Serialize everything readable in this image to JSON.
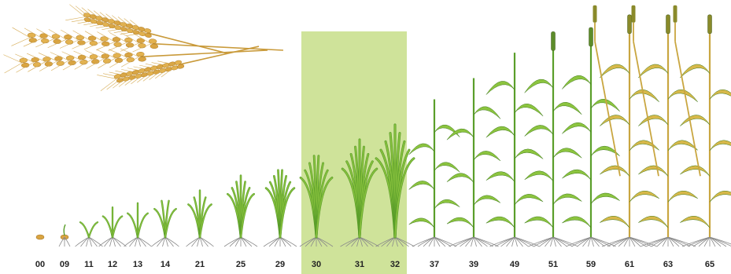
{
  "figure": {
    "highlight_stages": [
      "30",
      "31",
      "32"
    ],
    "colors": {
      "highlight": "#cfe39a",
      "leaf_green": "#5a9e2a",
      "leaf_green_light": "#8cc43f",
      "ripe_yellow": "#d7b84a",
      "grain_gold": "#d9a441",
      "root": "#8a8a8a"
    }
  },
  "stages": [
    {
      "code": "00",
      "kind": "seed"
    },
    {
      "code": "09",
      "kind": "sprout"
    },
    {
      "code": "11",
      "kind": "seedling",
      "leaves": 2,
      "size": 0.1
    },
    {
      "code": "12",
      "kind": "seedling",
      "leaves": 3,
      "size": 0.14
    },
    {
      "code": "13",
      "kind": "seedling",
      "leaves": 3,
      "size": 0.16
    },
    {
      "code": "14",
      "kind": "seedling",
      "leaves": 4,
      "size": 0.19
    },
    {
      "code": "21",
      "kind": "tiller",
      "leaves": 5,
      "size": 0.22
    },
    {
      "code": "25",
      "kind": "tiller",
      "leaves": 7,
      "size": 0.29
    },
    {
      "code": "29",
      "kind": "tiller",
      "leaves": 8,
      "size": 0.33
    },
    {
      "code": "30",
      "kind": "tiller",
      "leaves": 8,
      "size": 0.4
    },
    {
      "code": "31",
      "kind": "tiller",
      "leaves": 9,
      "size": 0.46
    },
    {
      "code": "32",
      "kind": "tiller",
      "leaves": 9,
      "size": 0.53
    },
    {
      "code": "37",
      "kind": "stem",
      "leaves": 6,
      "size": 0.65
    },
    {
      "code": "39",
      "kind": "stem",
      "leaves": 6,
      "size": 0.75
    },
    {
      "code": "49",
      "kind": "stem",
      "leaves": 7,
      "size": 0.87
    },
    {
      "code": "51",
      "kind": "head",
      "leaves": 7,
      "size": 0.88
    },
    {
      "code": "59",
      "kind": "head",
      "leaves": 7,
      "size": 0.9
    },
    {
      "code": "61",
      "kind": "ripe",
      "leaves": 7,
      "size": 0.96
    },
    {
      "code": "63",
      "kind": "ripe",
      "leaves": 7,
      "size": 0.96
    },
    {
      "code": "65",
      "kind": "ripe",
      "leaves": 7,
      "size": 0.96
    }
  ]
}
